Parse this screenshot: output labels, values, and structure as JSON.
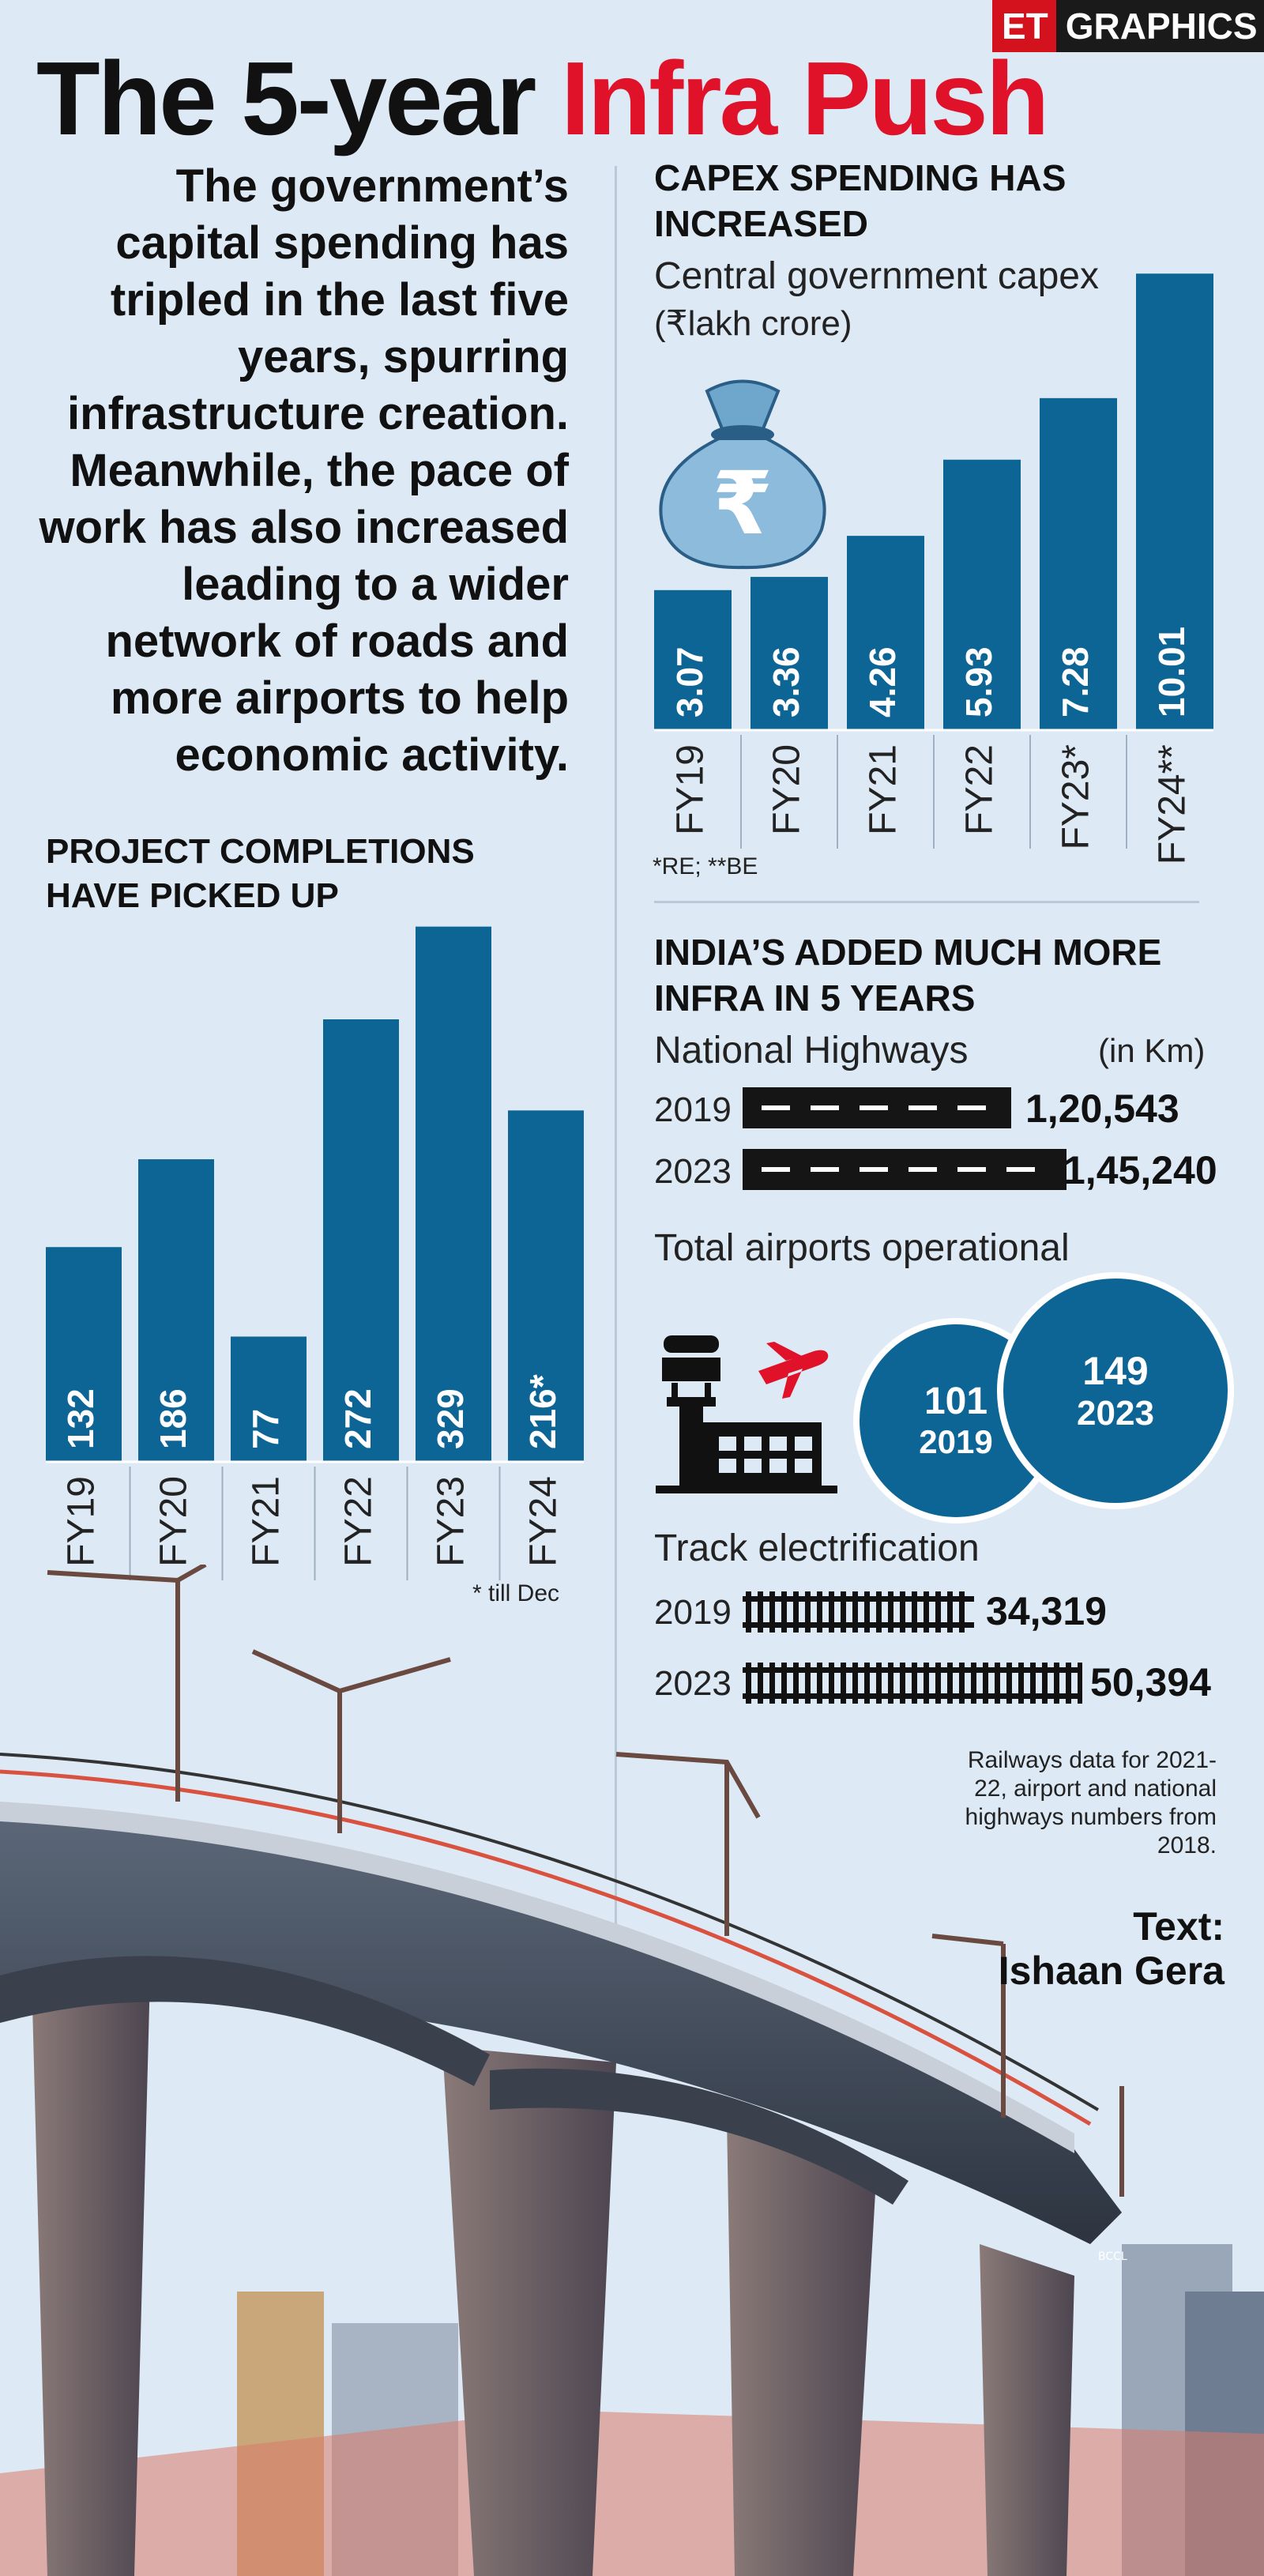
{
  "brand": {
    "et": "ET",
    "graphics": "GRAPHICS"
  },
  "title": {
    "part1": "The 5-year ",
    "part2": "Infra Push"
  },
  "intro": "The government’s capital spending has tripled in the last five years, spurring infrastructure creation. Meanwhile, the pace of work has also increased leading to a wider network of roads and more airports to help economic activity.",
  "capex": {
    "heading": "CAPEX SPENDING HAS INCREASED",
    "subtitle_line1": "Central government capex",
    "subtitle_line2": "(₹lakh crore)",
    "footnote": "*RE; **BE"
  },
  "projects": {
    "heading": "PROJECT COMPLETIONS HAVE PICKED UP",
    "footnote": "* till Dec"
  },
  "infra": {
    "heading": "INDIA’S ADDED MUCH MORE INFRA IN 5 YEARS",
    "highways_label": "National Highways",
    "highways_unit": "(in Km)",
    "highways": [
      {
        "year": "2019",
        "value": "1,20,543",
        "km": 120543
      },
      {
        "year": "2023",
        "value": "1,45,240",
        "km": 145240
      }
    ],
    "airports_label": "Total airports operational",
    "airports": [
      {
        "year": "2019",
        "value": "101"
      },
      {
        "year": "2023",
        "value": "149"
      }
    ],
    "track_label": "Track electrification",
    "tracks": [
      {
        "year": "2019",
        "value": "34,319",
        "km": 34319
      },
      {
        "year": "2023",
        "value": "50,394",
        "km": 50394
      }
    ]
  },
  "note": "Railways data for 2021-22, airport and national highways numbers from 2018.",
  "byline": {
    "label": "Text:",
    "name": "Ishaan Gera"
  },
  "credit": "BCCL",
  "colors": {
    "bar": "#0d6596",
    "accent": "#e0122a",
    "background": "#dde9f4"
  },
  "chart_data": [
    {
      "type": "bar",
      "title": "Central government capex",
      "ylabel": "(₹lakh crore)",
      "categories": [
        "FY19",
        "FY20",
        "FY21",
        "FY22",
        "FY23*",
        "FY24**"
      ],
      "values": [
        3.07,
        3.36,
        4.26,
        5.93,
        7.28,
        10.01
      ],
      "labels": [
        "3.07",
        "3.36",
        "4.26",
        "5.93",
        "7.28",
        "10.01"
      ],
      "ylim": [
        0,
        10.5
      ]
    },
    {
      "type": "bar",
      "title": "",
      "categories": [
        "FY19",
        "FY20",
        "FY21",
        "FY22",
        "FY23",
        "FY24"
      ],
      "values": [
        132,
        186,
        77,
        272,
        329,
        216
      ],
      "labels": [
        "132",
        "186",
        "77",
        "272",
        "329",
        "216*"
      ],
      "ylim": [
        0,
        340
      ]
    }
  ]
}
